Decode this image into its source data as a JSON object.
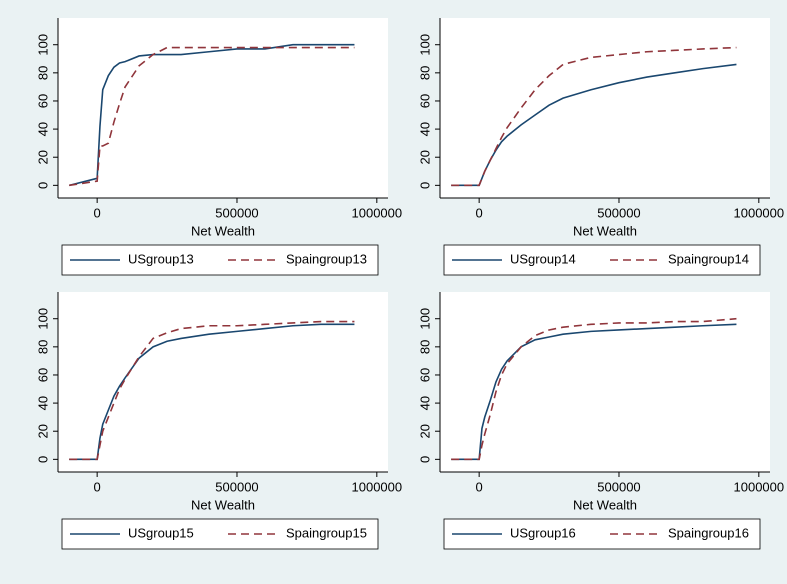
{
  "chart_data": [
    {
      "type": "line",
      "x_label": "Net Wealth",
      "xlim": [
        -140000,
        1040000
      ],
      "ylim": [
        -9,
        119
      ],
      "xticks": [
        0,
        500000,
        1000000
      ],
      "yticks": [
        0,
        20,
        40,
        60,
        80,
        100
      ],
      "x": [
        -100000,
        0,
        10000,
        20000,
        40000,
        60000,
        80000,
        100000,
        150000,
        200000,
        250000,
        300000,
        400000,
        500000,
        600000,
        700000,
        800000,
        920000
      ],
      "series": [
        {
          "name": "USgroup13",
          "color": "#1a476f",
          "style": "solid",
          "values": [
            0,
            5,
            42,
            68,
            78,
            84,
            87,
            88,
            92,
            93,
            93,
            93,
            95,
            97,
            97,
            100,
            100,
            100
          ]
        },
        {
          "name": "Spaingroup13",
          "color": "#90353b",
          "style": "dashed",
          "values": [
            0,
            3,
            28,
            28,
            30,
            45,
            58,
            70,
            85,
            93,
            98,
            98,
            98,
            98,
            98,
            98,
            98,
            98
          ]
        }
      ]
    },
    {
      "type": "line",
      "x_label": "Net Wealth",
      "xlim": [
        -140000,
        1040000
      ],
      "ylim": [
        -9,
        119
      ],
      "xticks": [
        0,
        500000,
        1000000
      ],
      "yticks": [
        0,
        20,
        40,
        60,
        80,
        100
      ],
      "x": [
        -100000,
        0,
        10000,
        20000,
        40000,
        60000,
        80000,
        100000,
        150000,
        200000,
        250000,
        300000,
        400000,
        500000,
        600000,
        700000,
        800000,
        920000
      ],
      "series": [
        {
          "name": "USgroup14",
          "color": "#1a476f",
          "style": "solid",
          "values": [
            0,
            0,
            5,
            10,
            18,
            25,
            31,
            35,
            43,
            50,
            57,
            62,
            68,
            73,
            77,
            80,
            83,
            86
          ]
        },
        {
          "name": "Spaingroup14",
          "color": "#90353b",
          "style": "dashed",
          "values": [
            0,
            0,
            5,
            10,
            18,
            26,
            34,
            41,
            55,
            68,
            78,
            86,
            91,
            93,
            95,
            96,
            97,
            98
          ]
        }
      ]
    },
    {
      "type": "line",
      "x_label": "Net Wealth",
      "xlim": [
        -140000,
        1040000
      ],
      "ylim": [
        -9,
        119
      ],
      "xticks": [
        0,
        500000,
        1000000
      ],
      "yticks": [
        0,
        20,
        40,
        60,
        80,
        100
      ],
      "x": [
        -100000,
        0,
        10000,
        20000,
        40000,
        60000,
        80000,
        100000,
        150000,
        200000,
        250000,
        300000,
        400000,
        500000,
        600000,
        700000,
        800000,
        920000
      ],
      "series": [
        {
          "name": "USgroup15",
          "color": "#1a476f",
          "style": "solid",
          "values": [
            0,
            0,
            15,
            25,
            35,
            45,
            52,
            58,
            72,
            80,
            84,
            86,
            89,
            91,
            93,
            95,
            96,
            96
          ]
        },
        {
          "name": "Spaingroup15",
          "color": "#90353b",
          "style": "dashed",
          "values": [
            0,
            0,
            10,
            20,
            30,
            40,
            50,
            57,
            73,
            86,
            90,
            93,
            95,
            95,
            96,
            97,
            98,
            98
          ]
        }
      ]
    },
    {
      "type": "line",
      "x_label": "Net Wealth",
      "xlim": [
        -140000,
        1040000
      ],
      "ylim": [
        -9,
        119
      ],
      "xticks": [
        0,
        500000,
        1000000
      ],
      "yticks": [
        0,
        20,
        40,
        60,
        80,
        100
      ],
      "x": [
        -100000,
        0,
        10000,
        20000,
        40000,
        60000,
        80000,
        100000,
        150000,
        200000,
        250000,
        300000,
        400000,
        500000,
        600000,
        700000,
        800000,
        920000
      ],
      "series": [
        {
          "name": "USgroup16",
          "color": "#1a476f",
          "style": "solid",
          "values": [
            0,
            0,
            22,
            30,
            42,
            55,
            64,
            70,
            80,
            85,
            87,
            89,
            91,
            92,
            93,
            94,
            95,
            96
          ]
        },
        {
          "name": "Spaingroup16",
          "color": "#90353b",
          "style": "dashed",
          "values": [
            0,
            0,
            10,
            18,
            32,
            48,
            60,
            68,
            80,
            88,
            92,
            94,
            96,
            97,
            97,
            98,
            98,
            100
          ]
        }
      ]
    }
  ]
}
